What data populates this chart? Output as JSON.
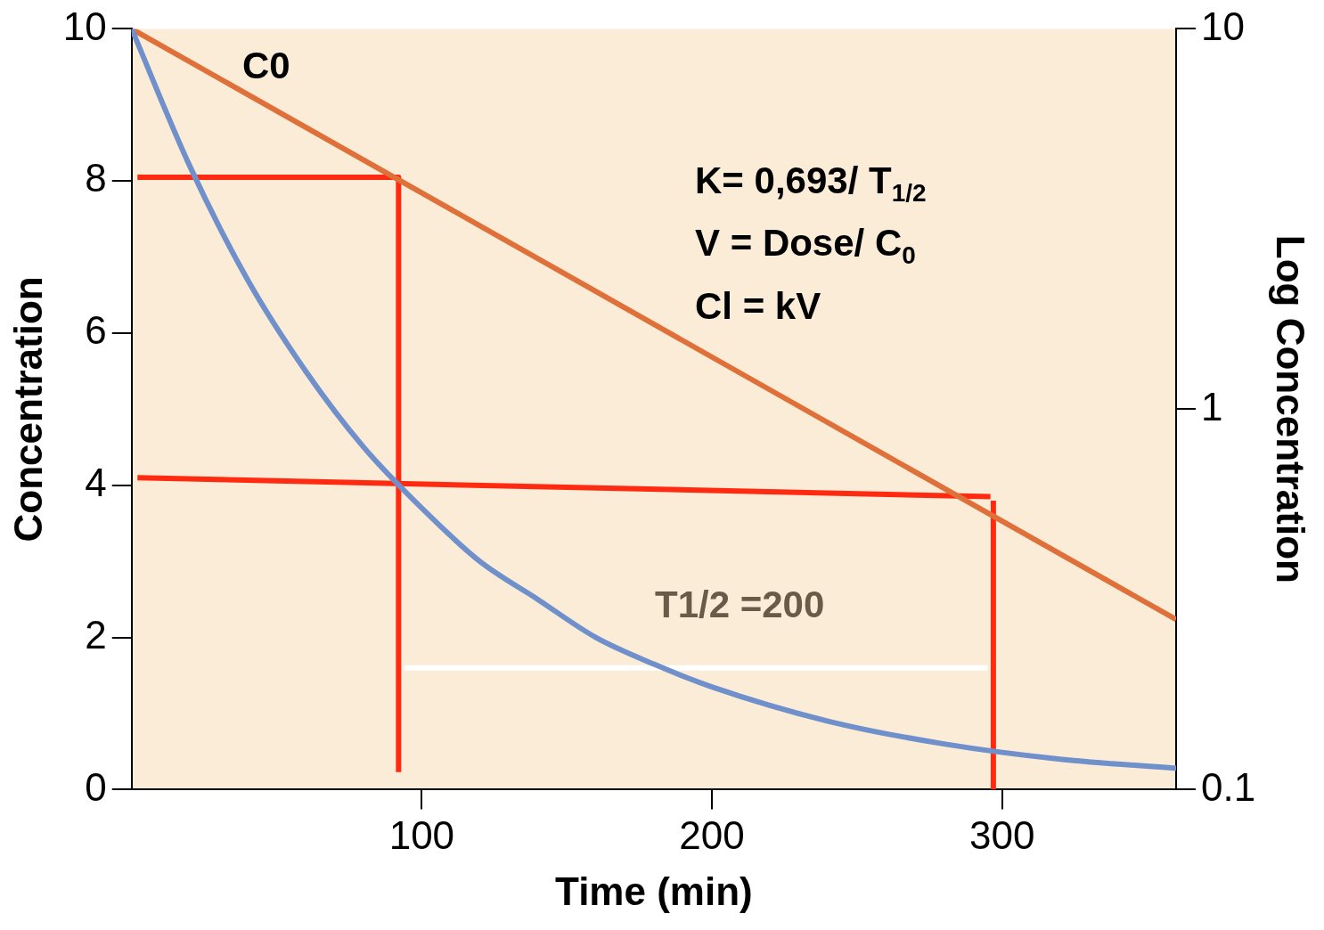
{
  "chart_data": {
    "type": "line",
    "xlabel": "Time (min)",
    "ylabel": "Concentration",
    "y2label": "Log Concentration",
    "xlim": [
      0,
      360
    ],
    "xticks": [
      100,
      200,
      300
    ],
    "ylim": [
      0,
      10
    ],
    "yticks": [
      0,
      2,
      4,
      6,
      8,
      10
    ],
    "y2lim": [
      0.1,
      10
    ],
    "y2ticks": [
      0.1,
      1,
      10
    ],
    "log": "y2",
    "grid": false,
    "legend": false,
    "marker": "none",
    "series": [
      {
        "color": "#7090cc",
        "x": [
          0,
          20,
          40,
          60,
          80,
          100,
          120,
          140,
          160,
          180,
          200,
          240,
          280,
          320,
          360
        ],
        "values": [
          10,
          8.2,
          6.7,
          5.5,
          4.5,
          3.7,
          3.0,
          2.5,
          2.0,
          1.65,
          1.35,
          0.9,
          0.6,
          0.4,
          0.28
        ]
      },
      {
        "color": "#e0703a",
        "axis": "y2",
        "x": [
          0,
          360
        ],
        "values": [
          10,
          0.28
        ]
      },
      {
        "color": "#ff2a10",
        "x": [
          2,
          92,
          92
        ],
        "values": [
          8.05,
          8.05,
          0.23
        ]
      },
      {
        "color": "#ff2a10",
        "x": [
          2,
          296
        ],
        "values": [
          4.1,
          3.85
        ]
      },
      {
        "color": "#ff2a10",
        "x": [
          297,
          297
        ],
        "values": [
          3.8,
          0
        ]
      },
      {
        "color": "#ffffff",
        "x": [
          94,
          295
        ],
        "values": [
          1.6,
          1.6
        ]
      }
    ],
    "annotations": [
      "C0",
      "T1/2 =200",
      "K= 0,693/ T$_{1/2}$",
      "V = Dose/ C$_{0}$",
      "Cl = kV"
    ]
  }
}
